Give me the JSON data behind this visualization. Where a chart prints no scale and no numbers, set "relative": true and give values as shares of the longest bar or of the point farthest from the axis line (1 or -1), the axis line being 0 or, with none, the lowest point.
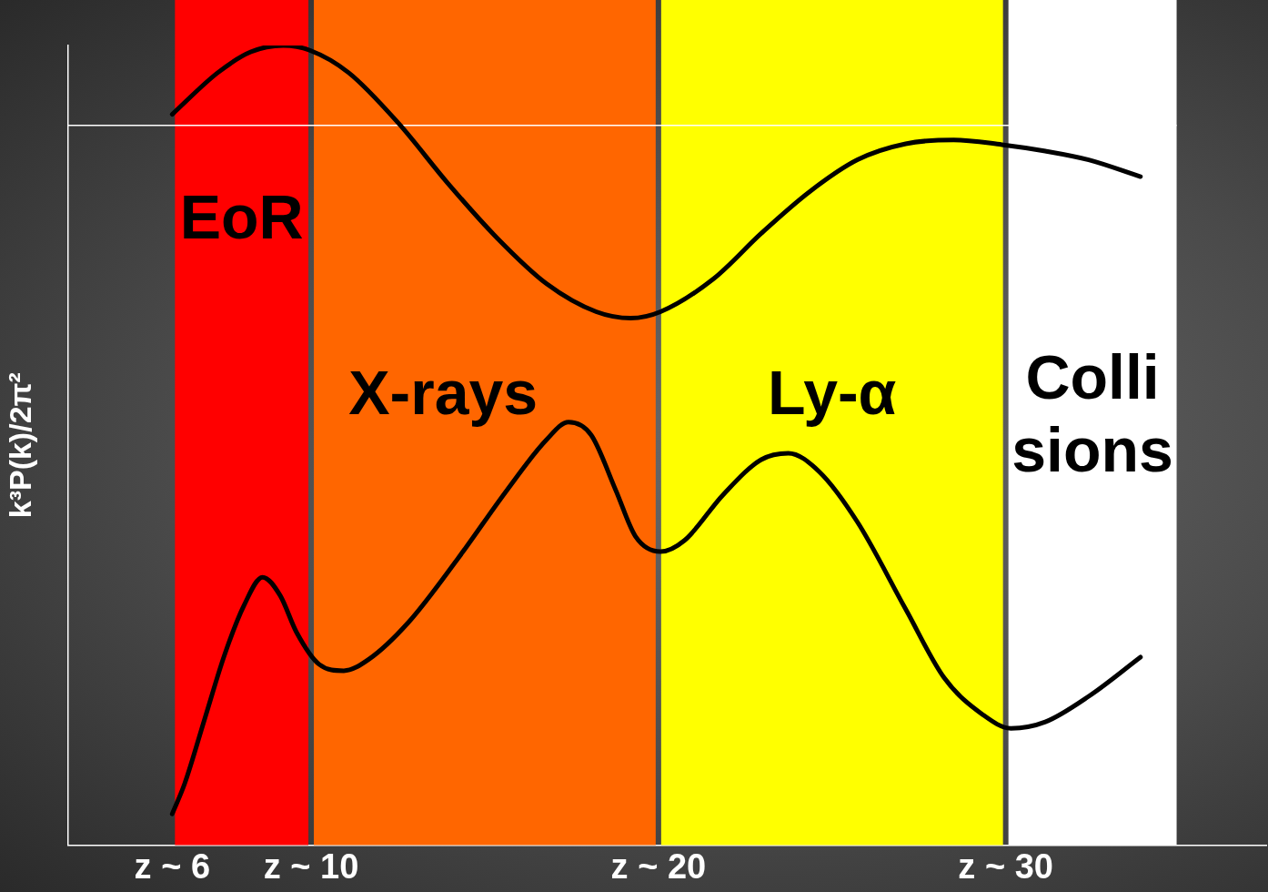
{
  "chart_data": {
    "type": "line",
    "ylabel": "k³P(k)/2π²",
    "relative": true,
    "xlim": [
      3,
      37.5
    ],
    "xticks": [
      {
        "value": 6,
        "label": "z ~ 6"
      },
      {
        "value": 10,
        "label": "z ~ 10"
      },
      {
        "value": 20,
        "label": "z ~ 20"
      },
      {
        "value": 30,
        "label": "z ~ 30"
      }
    ],
    "bands": [
      {
        "axis": "x",
        "from": 6,
        "to": 10,
        "label": "EoR",
        "color": "#ff0000"
      },
      {
        "axis": "x",
        "from": 10,
        "to": 20,
        "label": "X-rays",
        "color": "#ff6600"
      },
      {
        "axis": "x",
        "from": 20,
        "to": 30,
        "label": "Ly-α",
        "color": "#ffff00"
      },
      {
        "axis": "x",
        "from": 30,
        "to": 35,
        "label": "Colli\nsions",
        "color": "#ffffff"
      }
    ],
    "ref_lines": [
      {
        "axis": "y",
        "value": 0.9,
        "color": "#ffffff"
      }
    ],
    "series": [
      {
        "color": "#000000",
        "x": [
          6.0,
          7.31,
          8.26,
          9.2,
          9.96,
          11.08,
          12.51,
          13.93,
          15.36,
          16.78,
          18.21,
          19.2,
          20.06,
          21.58,
          22.96,
          24.35,
          25.73,
          27.12,
          28.5,
          29.89,
          31.14,
          32.39,
          33.88
        ],
        "values": [
          0.914,
          0.966,
          0.992,
          1.0,
          0.994,
          0.966,
          0.903,
          0.828,
          0.759,
          0.702,
          0.667,
          0.659,
          0.667,
          0.708,
          0.765,
          0.817,
          0.857,
          0.877,
          0.882,
          0.876,
          0.868,
          0.857,
          0.836
        ]
      },
      {
        "color": "#000000",
        "x": [
          6.0,
          6.36,
          6.93,
          7.5,
          8.07,
          8.6,
          9.11,
          9.58,
          10.23,
          10.94,
          11.65,
          12.79,
          14.22,
          15.64,
          16.78,
          17.41,
          18.06,
          18.77,
          19.34,
          20.06,
          20.75,
          21.86,
          22.96,
          23.74,
          24.63,
          25.73,
          27.12,
          28.23,
          29.34,
          30.15,
          31.14,
          32.39,
          33.88
        ],
        "values": [
          0.039,
          0.077,
          0.157,
          0.237,
          0.3,
          0.335,
          0.312,
          0.266,
          0.226,
          0.218,
          0.232,
          0.278,
          0.358,
          0.444,
          0.507,
          0.529,
          0.513,
          0.444,
          0.386,
          0.367,
          0.381,
          0.438,
          0.482,
          0.49,
          0.467,
          0.404,
          0.295,
          0.209,
          0.163,
          0.146,
          0.154,
          0.186,
          0.235
        ]
      }
    ],
    "grid": false,
    "legend": false,
    "marker": "none",
    "line_style": "solid"
  }
}
